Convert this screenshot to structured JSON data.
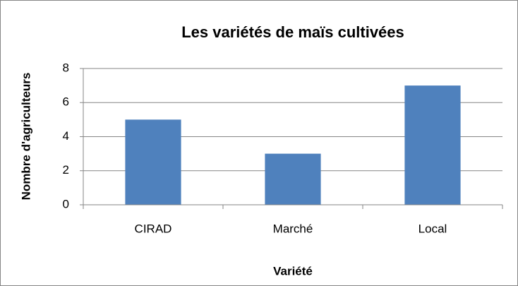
{
  "chart_data": {
    "type": "bar",
    "title": "Les variétés de maïs cultivées",
    "xlabel": "Variété",
    "ylabel": "Nombre d'agriculteurs",
    "categories": [
      "CIRAD",
      "Marché",
      "Local"
    ],
    "values": [
      5,
      3,
      7
    ],
    "color": "#4f81bd",
    "ylim": [
      0,
      8
    ],
    "yticks": [
      0,
      2,
      4,
      6,
      8
    ],
    "grid": true
  }
}
